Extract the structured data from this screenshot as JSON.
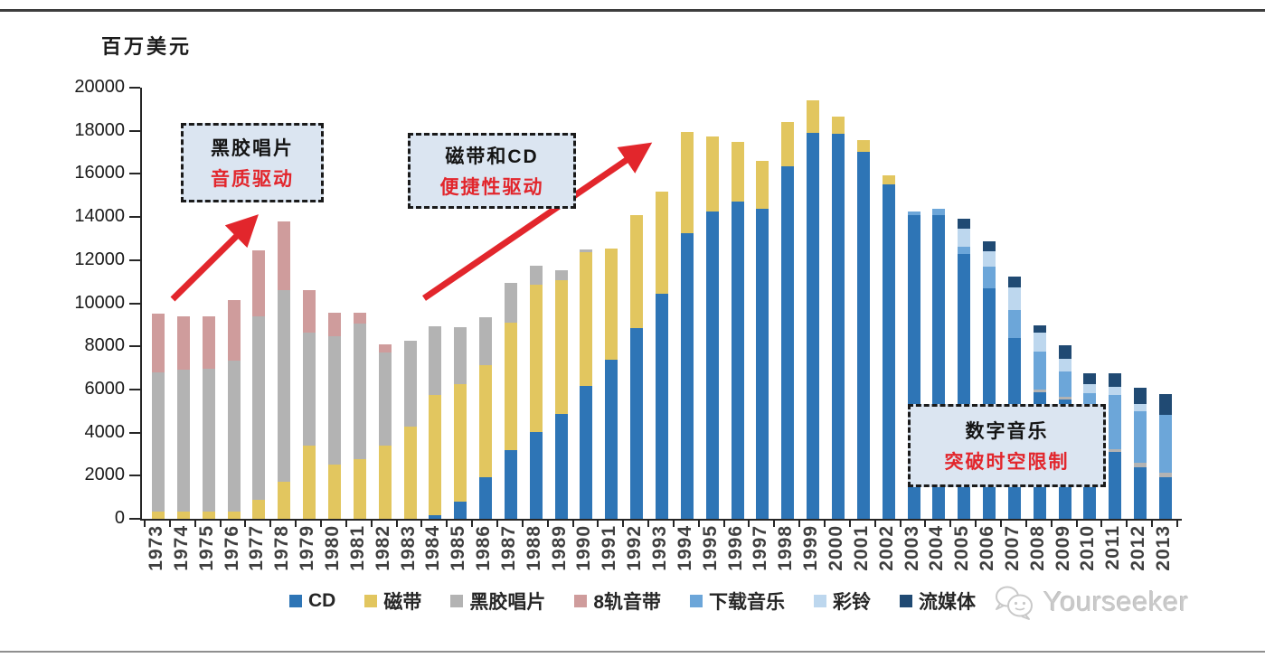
{
  "annotations": {
    "vinyl": {
      "line1": "黑胶唱片",
      "line2": "音质驱动"
    },
    "cassette_cd": {
      "line1": "磁带和CD",
      "line2": "便捷性驱动"
    },
    "digital": {
      "line1": "数字音乐",
      "line2": "突破时空限制"
    }
  },
  "watermark": {
    "brand": "Yourseeker"
  },
  "colors": {
    "accent_red": "#e2262c",
    "annotation_bg": "#dbe5f1",
    "annotation_border": "#1a1a1a",
    "axis": "#262626"
  },
  "chart_data": {
    "type": "bar",
    "stacked": true,
    "title": "",
    "xlabel": "",
    "ylabel": "百万美元",
    "ylim": [
      0,
      20000
    ],
    "y_ticks": [
      0,
      2000,
      4000,
      6000,
      8000,
      10000,
      12000,
      14000,
      16000,
      18000,
      20000
    ],
    "grid": false,
    "legend_position": "bottom",
    "categories": [
      "1973",
      "1974",
      "1975",
      "1976",
      "1977",
      "1978",
      "1979",
      "1980",
      "1981",
      "1982",
      "1983",
      "1984",
      "1985",
      "1986",
      "1987",
      "1988",
      "1989",
      "1990",
      "1991",
      "1992",
      "1993",
      "1994",
      "1995",
      "1996",
      "1997",
      "1998",
      "1999",
      "2000",
      "2001",
      "2002",
      "2003",
      "2004",
      "2005",
      "2006",
      "2007",
      "2008",
      "2009",
      "2010",
      "2011",
      "2012",
      "2013"
    ],
    "series": [
      {
        "name": "CD",
        "color": "#2e75b6",
        "values": [
          0,
          0,
          0,
          0,
          0,
          0,
          0,
          0,
          0,
          0,
          0,
          150,
          800,
          1925,
          3180,
          4020,
          4850,
          6150,
          7400,
          8830,
          10420,
          13250,
          14250,
          14700,
          14390,
          16360,
          17900,
          17860,
          17030,
          15520,
          14100,
          14100,
          12300,
          10700,
          8400,
          5880,
          5550,
          4500,
          3100,
          2385,
          1925
        ]
      },
      {
        "name": "磁带",
        "color": "#e2c65f",
        "values": [
          350,
          350,
          350,
          350,
          900,
          1700,
          3400,
          2500,
          2750,
          3400,
          4270,
          5580,
          5430,
          5190,
          5940,
          6820,
          6200,
          6200,
          5150,
          5270,
          4770,
          4700,
          3500,
          2800,
          2210,
          2040,
          1500,
          790,
          520,
          430,
          0,
          0,
          0,
          0,
          0,
          0,
          0,
          0,
          0,
          0,
          0
        ]
      },
      {
        "name": "黑胶唱片",
        "color": "#b3b3b3",
        "values": [
          6450,
          6550,
          6600,
          7000,
          8500,
          8900,
          5250,
          5950,
          6300,
          4300,
          3980,
          3220,
          2640,
          2255,
          1840,
          920,
          500,
          150,
          0,
          0,
          0,
          0,
          0,
          0,
          0,
          0,
          0,
          0,
          0,
          0,
          0,
          0,
          0,
          0,
          0,
          130,
          100,
          60,
          150,
          210,
          210
        ]
      },
      {
        "name": "8轨音带",
        "color": "#cf9c9c",
        "values": [
          2700,
          2500,
          2450,
          2800,
          3050,
          3200,
          1950,
          1100,
          530,
          400,
          0,
          0,
          0,
          0,
          0,
          0,
          0,
          0,
          0,
          0,
          0,
          0,
          0,
          0,
          0,
          0,
          0,
          0,
          0,
          0,
          0,
          0,
          0,
          0,
          0,
          0,
          0,
          0,
          0,
          0,
          0
        ]
      },
      {
        "name": "下载音乐",
        "color": "#6ca6d9",
        "values": [
          0,
          0,
          0,
          0,
          0,
          0,
          0,
          0,
          0,
          0,
          0,
          0,
          0,
          0,
          0,
          0,
          0,
          0,
          0,
          0,
          0,
          0,
          0,
          0,
          0,
          0,
          0,
          0,
          0,
          0,
          150,
          300,
          330,
          1000,
          1300,
          1760,
          1170,
          1255,
          2480,
          2385,
          2680
        ]
      },
      {
        "name": "彩铃",
        "color": "#bdd7ee",
        "values": [
          0,
          0,
          0,
          0,
          0,
          0,
          0,
          0,
          0,
          0,
          0,
          0,
          0,
          0,
          0,
          0,
          0,
          0,
          0,
          0,
          0,
          0,
          0,
          0,
          0,
          0,
          0,
          0,
          0,
          0,
          0,
          0,
          840,
          700,
          1050,
          880,
          585,
          420,
          380,
          335,
          0
        ]
      },
      {
        "name": "流媒体",
        "color": "#204a73",
        "values": [
          0,
          0,
          0,
          0,
          0,
          0,
          0,
          0,
          0,
          0,
          0,
          0,
          0,
          0,
          0,
          0,
          0,
          0,
          0,
          0,
          0,
          0,
          0,
          0,
          0,
          0,
          0,
          0,
          0,
          0,
          0,
          0,
          450,
          480,
          500,
          340,
          630,
          500,
          630,
          755,
          960
        ]
      }
    ]
  }
}
